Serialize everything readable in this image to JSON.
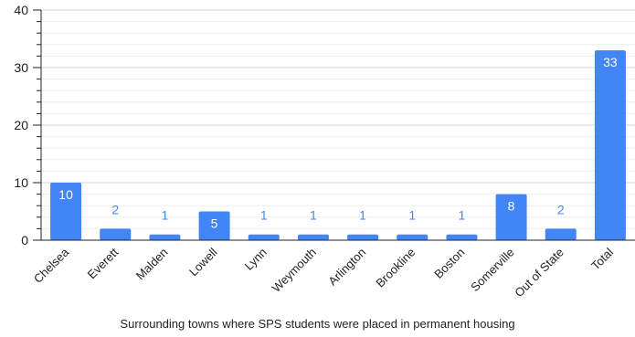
{
  "chart_data": {
    "type": "bar",
    "categories": [
      "Chelsea",
      "Everett",
      "Malden",
      "Lowell",
      "Lynn",
      "Weymouth",
      "Arlington",
      "Brookline",
      "Boston",
      "Somerville",
      "Out of State",
      "Total"
    ],
    "values": [
      10,
      2,
      1,
      5,
      1,
      1,
      1,
      1,
      1,
      8,
      2,
      33
    ],
    "title": "",
    "xlabel": "Surrounding towns where SPS students were placed in permanent housing",
    "ylabel": "",
    "ylim": [
      0,
      40
    ],
    "yticks": [
      0,
      10,
      20,
      30,
      40
    ],
    "grid": true,
    "legend": "none",
    "colors": {
      "bar": "#4285f4",
      "label_inside": "#ffffff",
      "label_outside": "#4285f4",
      "grid": "#dddddd",
      "axis": "#222222"
    }
  }
}
